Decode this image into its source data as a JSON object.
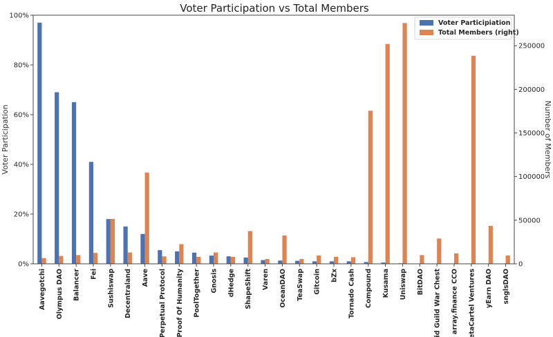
{
  "chart_data": {
    "type": "bar",
    "title": "Voter Participation vs Total Members",
    "ylabel": "Voter Participation",
    "y2label": "Number of Members",
    "ylim": [
      0,
      1
    ],
    "y2lim": [
      0,
      285000
    ],
    "yticks": [
      "0%",
      "20%",
      "40%",
      "60%",
      "80%",
      "100%"
    ],
    "y2ticks": [
      "0",
      "50000",
      "100000",
      "150000",
      "200000",
      "250000"
    ],
    "legend_position": "top-right",
    "colors": {
      "voter": "#4c72b0",
      "members": "#dd8452"
    },
    "categories": [
      "Aavegotchi",
      "Olympus DAO",
      "Balancer",
      "Fei",
      "Sushiswap",
      "Decentraland",
      "Aave",
      "Perpetual Protocol",
      "Proof Of Humanity",
      "PoolTogether",
      "Gnosis",
      "dHedge",
      "ShapeShift",
      "Varen",
      "OceanDAO",
      "TeaSwap",
      "Gitcoin",
      "bZx",
      "Tornado Cash",
      "Compound",
      "Kusama",
      "Uniswap",
      "BitDAO",
      "Raid Guild War Chest",
      "array.finance CCO",
      "MetaCartel Ventures",
      "yEarn DAO",
      "snglsDAO"
    ],
    "series": [
      {
        "name": "Voter Participiation",
        "axis": "left",
        "values": [
          0.97,
          0.69,
          0.65,
          0.41,
          0.18,
          0.15,
          0.12,
          0.055,
          0.05,
          0.045,
          0.033,
          0.03,
          0.025,
          0.015,
          0.013,
          0.012,
          0.01,
          0.01,
          0.01,
          0.007,
          0.005,
          0.002,
          0.001,
          0.001,
          0.001,
          0.001,
          0.001,
          0.001
        ]
      },
      {
        "name": "Total Members (right)",
        "axis": "right",
        "values": [
          6500,
          9000,
          10000,
          12500,
          51500,
          13000,
          104500,
          8500,
          22500,
          8000,
          13000,
          8000,
          37500,
          5500,
          32500,
          5500,
          9500,
          8000,
          7500,
          175500,
          252000,
          276000,
          10000,
          29000,
          12000,
          238500,
          43500,
          9500
        ]
      }
    ]
  }
}
